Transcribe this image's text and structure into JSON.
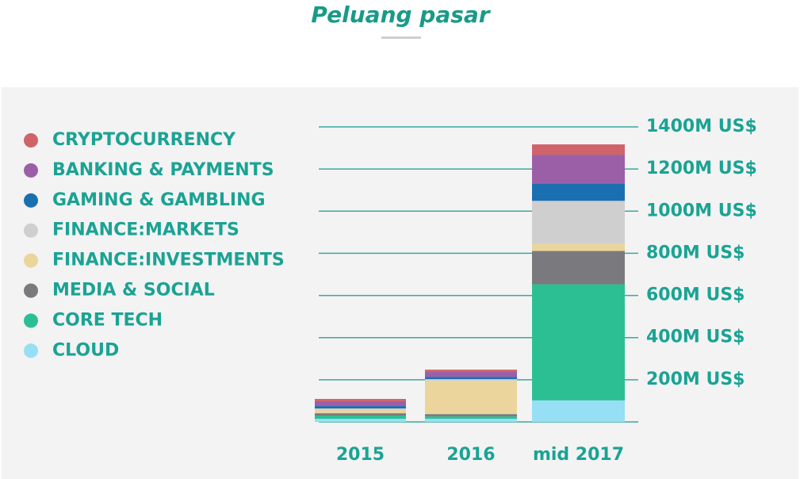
{
  "title": "Peluang pasar",
  "chart_data": {
    "type": "stacked_bar",
    "categories": [
      "2015",
      "2016",
      "mid 2017"
    ],
    "series": [
      {
        "name": "CLOUD",
        "color": "#96dff5",
        "values": [
          15,
          15,
          102
        ]
      },
      {
        "name": "CORE TECH",
        "color": "#2dbf94",
        "values": [
          15,
          11,
          551
        ]
      },
      {
        "name": "MEDIA & SOCIAL",
        "color": "#7a7a7e",
        "values": [
          11,
          11,
          158
        ]
      },
      {
        "name": "FINANCE:INVESTMENTS",
        "color": "#ebd59c",
        "values": [
          15,
          158,
          34
        ]
      },
      {
        "name": "FINANCE:MARKETS",
        "color": "#cfcfcf",
        "values": [
          8,
          8,
          204
        ]
      },
      {
        "name": "GAMING & GAMBLING",
        "color": "#1a6fb0",
        "values": [
          11,
          11,
          83
        ]
      },
      {
        "name": "BANKING & PAYMENTS",
        "color": "#9b5fa8",
        "values": [
          23,
          23,
          136
        ]
      },
      {
        "name": "CRYPTOCURRENCY",
        "color": "#d0636a",
        "values": [
          11,
          11,
          49
        ]
      }
    ],
    "ylim": [
      0,
      1400
    ],
    "yticks": [
      {
        "value": 200,
        "label": "200M US$"
      },
      {
        "value": 400,
        "label": "400M US$"
      },
      {
        "value": 600,
        "label": "600M US$"
      },
      {
        "value": 800,
        "label": "800M US$"
      },
      {
        "value": 1000,
        "label": "1000M US$"
      },
      {
        "value": 1200,
        "label": "1200M US$"
      },
      {
        "value": 1400,
        "label": "1400M US$"
      }
    ],
    "grid": true
  }
}
